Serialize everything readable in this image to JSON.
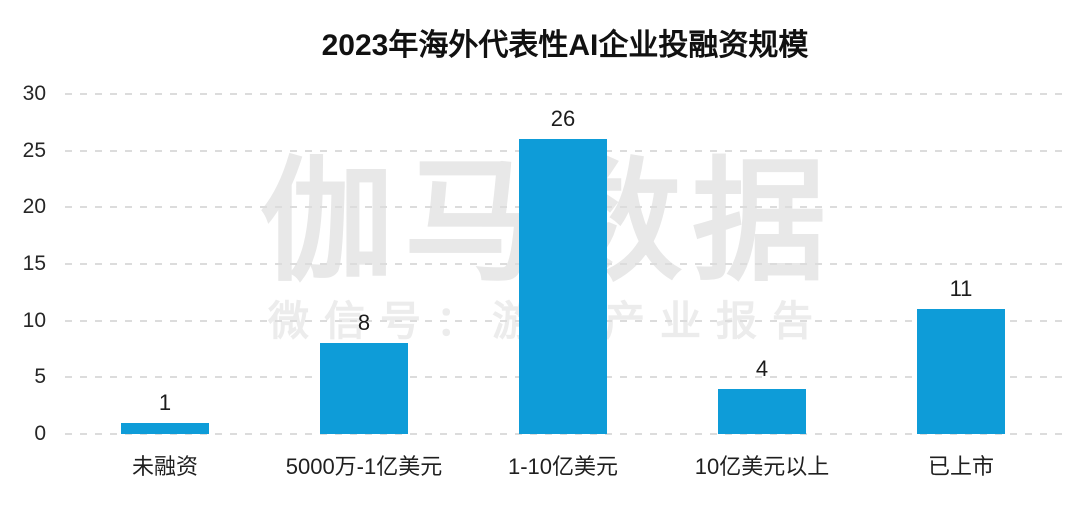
{
  "chart_data": {
    "type": "bar",
    "title": "2023年海外代表性AI企业投融资规模",
    "categories": [
      "未融资",
      "5000万-1亿美元",
      "1-10亿美元",
      "10亿美元以上",
      "已上市"
    ],
    "values": [
      1,
      8,
      26,
      4,
      11
    ],
    "xlabel": "",
    "ylabel": "",
    "ylim": [
      0,
      30
    ],
    "yticks": [
      0,
      5,
      10,
      15,
      20,
      25,
      30
    ],
    "grid": "horizontal-dashed",
    "legend": "none",
    "value_labels_shown": true,
    "bar_color": "#0E9CD8"
  },
  "watermark": {
    "main": "伽马数据",
    "sub": "微信号：游戏产业报告"
  },
  "colors": {
    "bar": "#0E9CD8",
    "grid": "#DCDCDC",
    "text": "#1F1F1F",
    "watermark_main": "#E8E8E8",
    "watermark_sub": "#ECECEC",
    "background": "#FFFFFF"
  }
}
